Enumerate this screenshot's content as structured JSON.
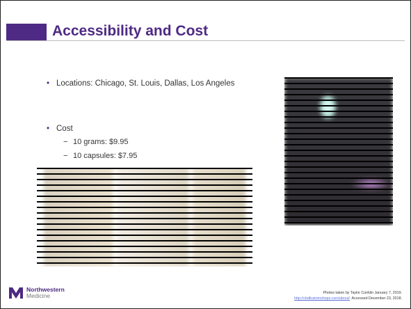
{
  "header": {
    "title": "Accessibility and Cost"
  },
  "bullets": [
    {
      "text": "Locations: Chicago, St. Louis, Dallas, Los Angeles"
    },
    {
      "text": "Cost",
      "items": [
        "10 grams: $9.95",
        "10 capsules: $7.95"
      ]
    }
  ],
  "footer": {
    "logo": {
      "name": "Northwestern",
      "sub": "Medicine"
    },
    "credit": "Photos taken by Taylor Conklin January 7, 2019.",
    "link": "http://cbdkratomshops.com/about/",
    "accessed": ". Accessed December 23, 2018."
  }
}
